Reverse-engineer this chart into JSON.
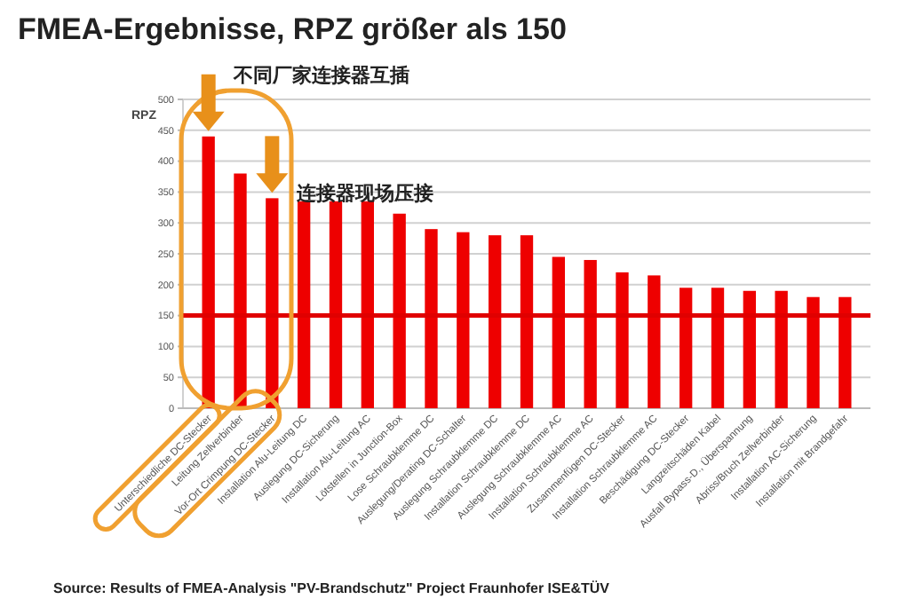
{
  "chart_data": {
    "type": "bar",
    "title": "FMEA-Ergebnisse, RPZ größer als  150",
    "ylabel": "RPZ",
    "categories": [
      "Unterschiedliche DC-Stecker",
      "Leitung Zellverbinder",
      "Vor-Ort Crimpung DC-Stecker",
      "Installation Alu-Leitung DC",
      "Auslegung DC-Sicherung",
      "Installation Alu-Leitung AC",
      "Lötstellen in Junction-Box",
      "Lose Schraubklemme DC",
      "Auslegung/Derating DC-Schalter",
      "Auslegung Schraubklemme DC",
      "Installation Schraubklemme DC",
      "Auslegung Schraubklemme AC",
      "Installation Schraubklemme AC",
      "Zusammenfügen DC-Stecker",
      "Installation Schraubklemme AC",
      "Beschädigung DC-Stecker",
      "Langzeitschäden Kabel",
      "Ausfall Bypass-D., Überspannung",
      "Abriss/Bruch Zellverbinder",
      "Installation AC-Sicherung",
      "Installation mit Brandgefahr"
    ],
    "values": [
      440,
      380,
      340,
      335,
      335,
      335,
      315,
      290,
      285,
      280,
      280,
      245,
      240,
      220,
      215,
      195,
      195,
      190,
      190,
      180,
      180
    ],
    "color": "#ee0000",
    "ylim": [
      0,
      500
    ],
    "yticks": [
      0,
      50,
      100,
      150,
      200,
      250,
      300,
      350,
      400,
      450,
      500
    ],
    "grid": "y",
    "ref_lines": [
      {
        "axis": "y",
        "value": 150,
        "color": "#e00000"
      }
    ],
    "annotations": [
      {
        "text": "不同厂家连接器互插",
        "x": "Unterschiedliche DC-Stecker",
        "y": 440
      },
      {
        "text": "连接器现场压接",
        "x": "Vor-Ort Crimpung DC-Stecker",
        "y": 340
      },
      "Source: Results of FMEA-Analysis \"PV-Brandschutz\" Project Fraunhofer ISE&TÜV"
    ]
  }
}
